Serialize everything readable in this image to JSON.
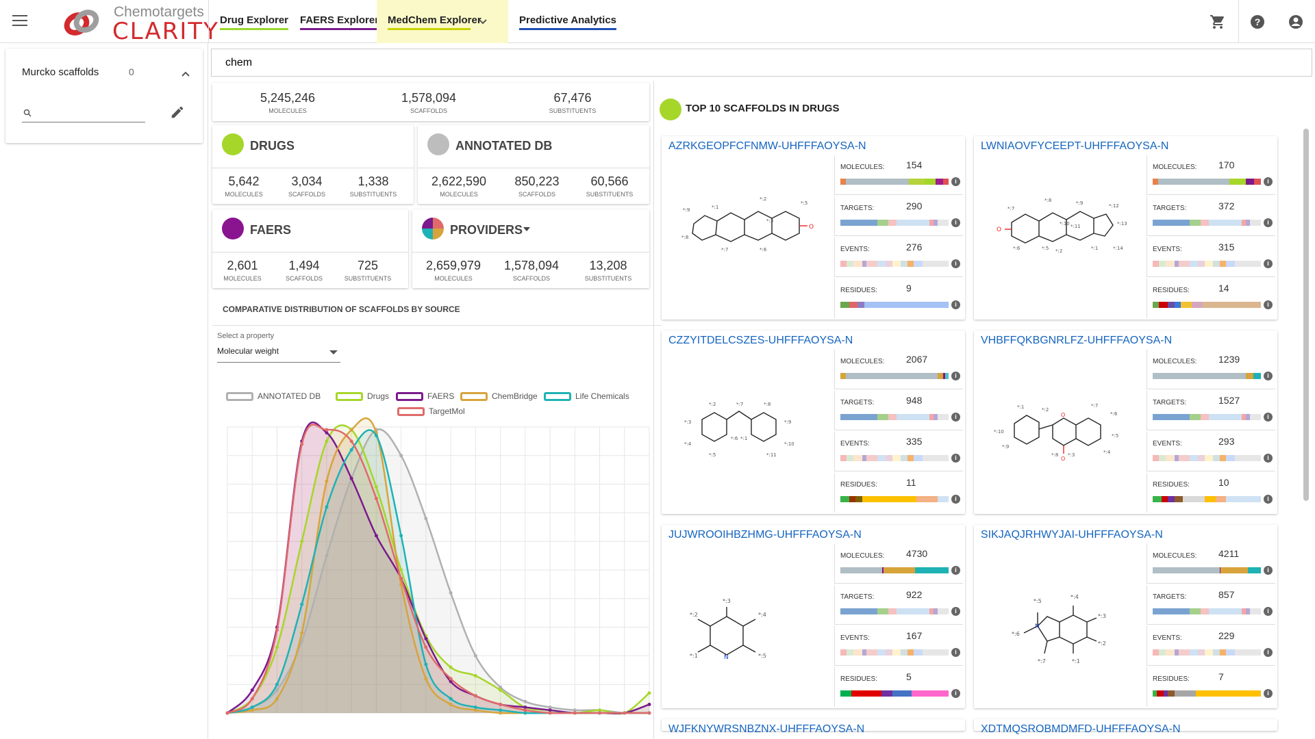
{
  "header": {
    "logo_top": "Chemotargets",
    "logo_bottom": "CLARITY",
    "tabs": [
      {
        "label": "Drug Explorer",
        "color": "#9bd72a"
      },
      {
        "label": "FAERS Explorer",
        "color": "#7a1a8c"
      },
      {
        "label": "MedChem Explorer",
        "color": "#c8d400"
      },
      {
        "label": "Predictive Analytics",
        "color": "#1e4fb4"
      }
    ]
  },
  "sidebar": {
    "murcko_title": "Murcko scaffolds",
    "murcko_count": "0"
  },
  "search": {
    "value": "chem"
  },
  "totals": {
    "molecules": "5,245,246",
    "molecules_lbl": "MOLECULES",
    "scaffolds": "1,578,094",
    "scaffolds_lbl": "SCAFFOLDS",
    "substituents": "67,476",
    "substituents_lbl": "SUBSTITUENTS"
  },
  "sources": {
    "drugs": {
      "title": "DRUGS",
      "color": "#a6d62a",
      "molecules": "5,642",
      "scaffolds": "3,034",
      "substituents": "1,338"
    },
    "annotated": {
      "title": "ANNOTATED DB",
      "color": "#bdbdbd",
      "molecules": "2,622,590",
      "scaffolds": "850,223",
      "substituents": "60,566"
    },
    "faers": {
      "title": "FAERS",
      "color": "#8a1490",
      "molecules": "2,601",
      "scaffolds": "1,494",
      "substituents": "725"
    },
    "providers": {
      "title": "PROVIDERS",
      "molecules": "2,659,979",
      "scaffolds": "1,578,094",
      "substituents": "13,208"
    }
  },
  "labels": {
    "molecules": "MOLECULES",
    "scaffolds": "SCAFFOLDS",
    "substituents": "SUBSTITUENTS"
  },
  "distribution": {
    "title": "COMPARATIVE DISTRIBUTION OF SCAFFOLDS BY SOURCE",
    "select_label": "Select a property",
    "select_value": "Molecular weight"
  },
  "chart_data": {
    "type": "area",
    "x": [
      0,
      1,
      2,
      3,
      4,
      5,
      6,
      7,
      8,
      9,
      10,
      11,
      12,
      13,
      14,
      15,
      16,
      17
    ],
    "xlim": [
      0,
      17
    ],
    "ylim": [
      0,
      100
    ],
    "series": [
      {
        "name": "ANNOTATED DB",
        "color": "#b0b0b0",
        "values": [
          0,
          2,
          8,
          25,
          55,
          82,
          99,
          90,
          68,
          42,
          20,
          9,
          4,
          2,
          1,
          1,
          0,
          0
        ]
      },
      {
        "name": "Drugs",
        "color": "#a6d62a",
        "values": [
          0,
          5,
          23,
          60,
          95,
          99,
          79,
          50,
          27,
          16,
          13,
          8,
          2,
          1,
          0,
          1,
          0,
          7
        ]
      },
      {
        "name": "FAERS",
        "color": "#7a1a8c",
        "values": [
          0,
          8,
          30,
          95,
          98,
          82,
          62,
          47,
          26,
          11,
          6,
          3,
          2,
          1,
          0,
          0,
          0,
          3
        ]
      },
      {
        "name": "ChemBridge",
        "color": "#d7a43b",
        "values": [
          0,
          1,
          5,
          28,
          81,
          99,
          98,
          45,
          12,
          3,
          1,
          0,
          0,
          0,
          0,
          0,
          0,
          0
        ]
      },
      {
        "name": "Life Chemicals",
        "color": "#1eb2b4",
        "values": [
          0,
          2,
          10,
          38,
          72,
          92,
          97,
          62,
          17,
          5,
          2,
          1,
          0,
          0,
          0,
          0,
          0,
          0
        ]
      },
      {
        "name": "TargetMol",
        "color": "#e06a6a",
        "values": [
          0,
          5,
          29,
          94,
          99,
          95,
          75,
          47,
          23,
          12,
          6,
          3,
          1,
          0,
          0,
          0,
          0,
          0
        ]
      }
    ]
  },
  "top_scaffolds": {
    "title": "TOP 10 SCAFFOLDS IN DRUGS",
    "metric_labels": {
      "molecules": "MOLECULES:",
      "targets": "TARGETS:",
      "events": "EVENTS:",
      "residues": "RESIDUES:"
    },
    "items": [
      {
        "name": "AZRKGEOPFCFNMW-UHFFFAOYSA-N",
        "molecules": "154",
        "targets": "290",
        "events": "276",
        "residues": "9"
      },
      {
        "name": "LWNIAOVFYCEEPT-UHFFFAOYSA-N",
        "molecules": "170",
        "targets": "372",
        "events": "315",
        "residues": "14"
      },
      {
        "name": "CZZYITDELCSZES-UHFFFAOYSA-N",
        "molecules": "2067",
        "targets": "948",
        "events": "335",
        "residues": "11"
      },
      {
        "name": "VHBFFQKBGNRLFZ-UHFFFAOYSA-N",
        "molecules": "1239",
        "targets": "1527",
        "events": "293",
        "residues": "10"
      },
      {
        "name": "JUJWROOIHBZHMG-UHFFFAOYSA-N",
        "molecules": "4730",
        "targets": "922",
        "events": "167",
        "residues": "5"
      },
      {
        "name": "SIKJAQJRHWYJAI-UHFFFAOYSA-N",
        "molecules": "4211",
        "targets": "857",
        "events": "229",
        "residues": "7"
      },
      {
        "name": "WJFKNYWRSNBZNX-UHFFFAOYSA-N"
      },
      {
        "name": "XDTMQSROBMDMFD-UHFFFAOYSA-N"
      }
    ]
  }
}
